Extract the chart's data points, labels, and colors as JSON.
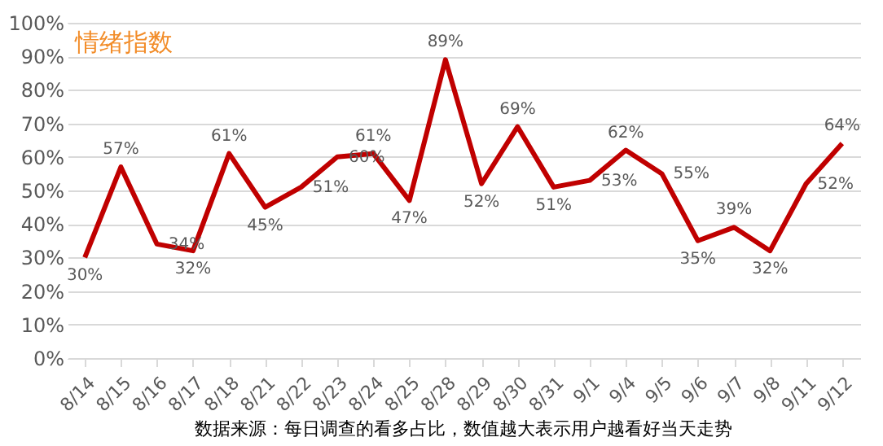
{
  "chart_data": {
    "type": "line",
    "title": "情绪指数",
    "categories": [
      "8/14",
      "8/15",
      "8/16",
      "8/17",
      "8/18",
      "8/21",
      "8/22",
      "8/23",
      "8/24",
      "8/25",
      "8/28",
      "8/29",
      "8/30",
      "8/31",
      "9/1",
      "9/4",
      "9/5",
      "9/6",
      "9/7",
      "9/8",
      "9/11",
      "9/12"
    ],
    "series": [
      {
        "color": "#c00000",
        "values": [
          30,
          57,
          34,
          32,
          61,
          45,
          51,
          60,
          61,
          47,
          89,
          52,
          69,
          51,
          53,
          62,
          55,
          35,
          39,
          32,
          52,
          64
        ]
      }
    ],
    "ylim": [
      0,
      100
    ],
    "yticks": [
      {
        "value": 0,
        "label": "0%"
      },
      {
        "value": 10,
        "label": "10%"
      },
      {
        "value": 20,
        "label": "20%"
      },
      {
        "value": 30,
        "label": "30%"
      },
      {
        "value": 40,
        "label": "40%"
      },
      {
        "value": 50,
        "label": "50%"
      },
      {
        "value": 60,
        "label": "60%"
      },
      {
        "value": 70,
        "label": "70%"
      },
      {
        "value": 80,
        "label": "80%"
      },
      {
        "value": 90,
        "label": "90%"
      },
      {
        "value": 100,
        "label": "100%"
      }
    ],
    "value_labels": [
      "30%",
      "57%",
      "34%",
      "32%",
      "61%",
      "45%",
      "51%",
      "60%",
      "61%",
      "47%",
      "89%",
      "52%",
      "69%",
      "51%",
      "53%",
      "62%",
      "55%",
      "35%",
      "39%",
      "32%",
      "52%",
      "64%"
    ],
    "grid": "y",
    "marker": "none",
    "line_style": "solid",
    "annotations": [
      "数据来源：每日调查的看多占比，数值越大表示用户越看好当天走势"
    ]
  }
}
